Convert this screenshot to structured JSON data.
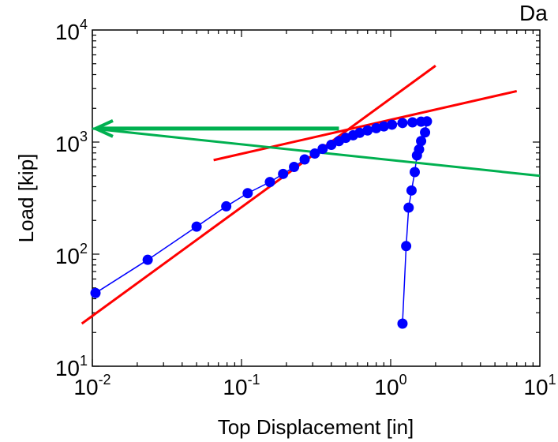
{
  "chart_data": {
    "type": "scatter",
    "title": "Da",
    "xlabel": "Top Displacement [in]",
    "ylabel": "Load [kip]",
    "xscale": "log",
    "yscale": "log",
    "xlim": [
      0.01,
      10
    ],
    "ylim": [
      10,
      10000
    ],
    "grid": false,
    "x_ticks": [
      {
        "value": 0.01,
        "base": "10",
        "exp": "-2"
      },
      {
        "value": 0.1,
        "base": "10",
        "exp": "-1"
      },
      {
        "value": 1,
        "base": "10",
        "exp": "0"
      },
      {
        "value": 10,
        "base": "10",
        "exp": "1"
      }
    ],
    "y_ticks": [
      {
        "value": 10,
        "base": "10",
        "exp": "1"
      },
      {
        "value": 100,
        "base": "10",
        "exp": "2"
      },
      {
        "value": 1000,
        "base": "10",
        "exp": "3"
      },
      {
        "value": 10000,
        "base": "10",
        "exp": "4"
      }
    ],
    "series": [
      {
        "kind": "marker-line",
        "color": "#0000ff",
        "points": [
          [
            0.0105,
            45
          ],
          [
            0.0235,
            89
          ],
          [
            0.05,
            176
          ],
          [
            0.079,
            267
          ],
          [
            0.11,
            350
          ],
          [
            0.155,
            440
          ],
          [
            0.19,
            520
          ],
          [
            0.225,
            600
          ],
          [
            0.265,
            700
          ],
          [
            0.31,
            790
          ],
          [
            0.35,
            870
          ],
          [
            0.4,
            945
          ],
          [
            0.45,
            1020
          ],
          [
            0.5,
            1090
          ],
          [
            0.56,
            1150
          ],
          [
            0.62,
            1210
          ],
          [
            0.7,
            1270
          ],
          [
            0.8,
            1330
          ],
          [
            0.9,
            1380
          ],
          [
            1.02,
            1430
          ],
          [
            1.2,
            1480
          ],
          [
            1.4,
            1500
          ],
          [
            1.6,
            1520
          ],
          [
            1.75,
            1530
          ],
          [
            1.7,
            1220
          ],
          [
            1.6,
            1020
          ],
          [
            1.55,
            860
          ],
          [
            1.5,
            760
          ],
          [
            1.45,
            540
          ],
          [
            1.38,
            370
          ],
          [
            1.32,
            260
          ],
          [
            1.27,
            118
          ],
          [
            1.2,
            24
          ]
        ]
      },
      {
        "kind": "line",
        "color": "#ff0000",
        "points": [
          [
            0.0085,
            24
          ],
          [
            2.0,
            4800
          ]
        ]
      },
      {
        "kind": "line",
        "color": "#ff0000",
        "points": [
          [
            0.065,
            690
          ],
          [
            7.0,
            2850
          ]
        ]
      },
      {
        "kind": "line",
        "color": "#00b050",
        "points": [
          [
            0.01,
            1320
          ],
          [
            10,
            500
          ]
        ]
      },
      {
        "kind": "arrow",
        "color": "#00b050",
        "points": [
          [
            0.45,
            1320
          ],
          [
            0.0105,
            1320
          ]
        ]
      }
    ]
  }
}
